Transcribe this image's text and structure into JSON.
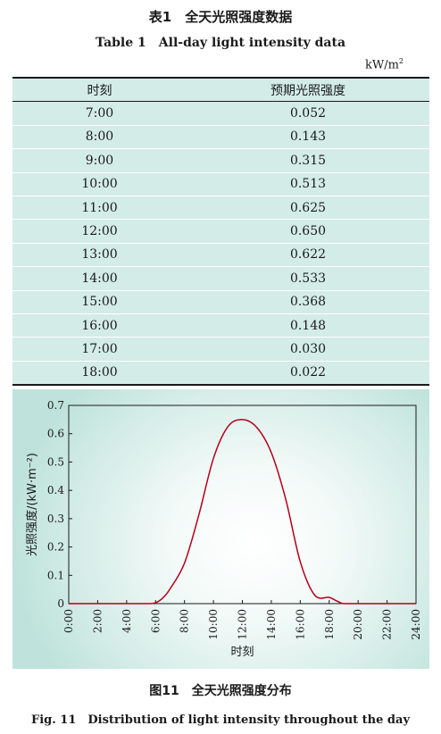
{
  "table": {
    "title_cn": "表1　全天光照强度数据",
    "title_en": "Table 1　All-day light intensity data",
    "unit": "kW/m",
    "unit_sup": "2",
    "headers": [
      "时刻",
      "预期光照强度"
    ],
    "rows": [
      [
        "7:00",
        "0.052"
      ],
      [
        "8:00",
        "0.143"
      ],
      [
        "9:00",
        "0.315"
      ],
      [
        "10:00",
        "0.513"
      ],
      [
        "11:00",
        "0.625"
      ],
      [
        "12:00",
        "0.650"
      ],
      [
        "13:00",
        "0.622"
      ],
      [
        "14:00",
        "0.533"
      ],
      [
        "15:00",
        "0.368"
      ],
      [
        "16:00",
        "0.148"
      ],
      [
        "17:00",
        "0.030"
      ],
      [
        "18:00",
        "0.022"
      ]
    ]
  },
  "figure": {
    "caption_cn": "图11　全天光照强度分布",
    "caption_en": "Fig. 11　Distribution of light intensity throughout the day"
  },
  "chart_data": {
    "type": "line",
    "title": "",
    "xlabel": "时刻",
    "ylabel": "光照强度/(kW·m⁻²)",
    "xlim": [
      0,
      24
    ],
    "ylim": [
      0,
      0.7
    ],
    "xticks": [
      0,
      2,
      4,
      6,
      8,
      10,
      12,
      14,
      16,
      18,
      20,
      22,
      24
    ],
    "xtick_labels": [
      "0:00",
      "2:00",
      "4:00",
      "6:00",
      "8:00",
      "10:00",
      "12:00",
      "14:00",
      "16:00",
      "18:00",
      "20:00",
      "22:00",
      "24:00"
    ],
    "yticks": [
      0,
      0.1,
      0.2,
      0.3,
      0.4,
      0.5,
      0.6,
      0.7
    ],
    "ytick_labels": [
      "0",
      "0.1",
      "0.2",
      "0.3",
      "0.4",
      "0.5",
      "0.6",
      "0.7"
    ],
    "grid": false,
    "line_color": "#b3001b",
    "series": [
      {
        "x": [
          0,
          2,
          4,
          5.5,
          6,
          6.5,
          7,
          8,
          9,
          10,
          11,
          12,
          13,
          14,
          15,
          16,
          17,
          18,
          18.5,
          19,
          20,
          22,
          24
        ],
        "values": [
          0,
          0,
          0,
          0,
          0.003,
          0.02,
          0.052,
          0.143,
          0.315,
          0.513,
          0.625,
          0.65,
          0.622,
          0.533,
          0.368,
          0.148,
          0.03,
          0.022,
          0.01,
          0,
          0,
          0,
          0
        ]
      }
    ]
  }
}
